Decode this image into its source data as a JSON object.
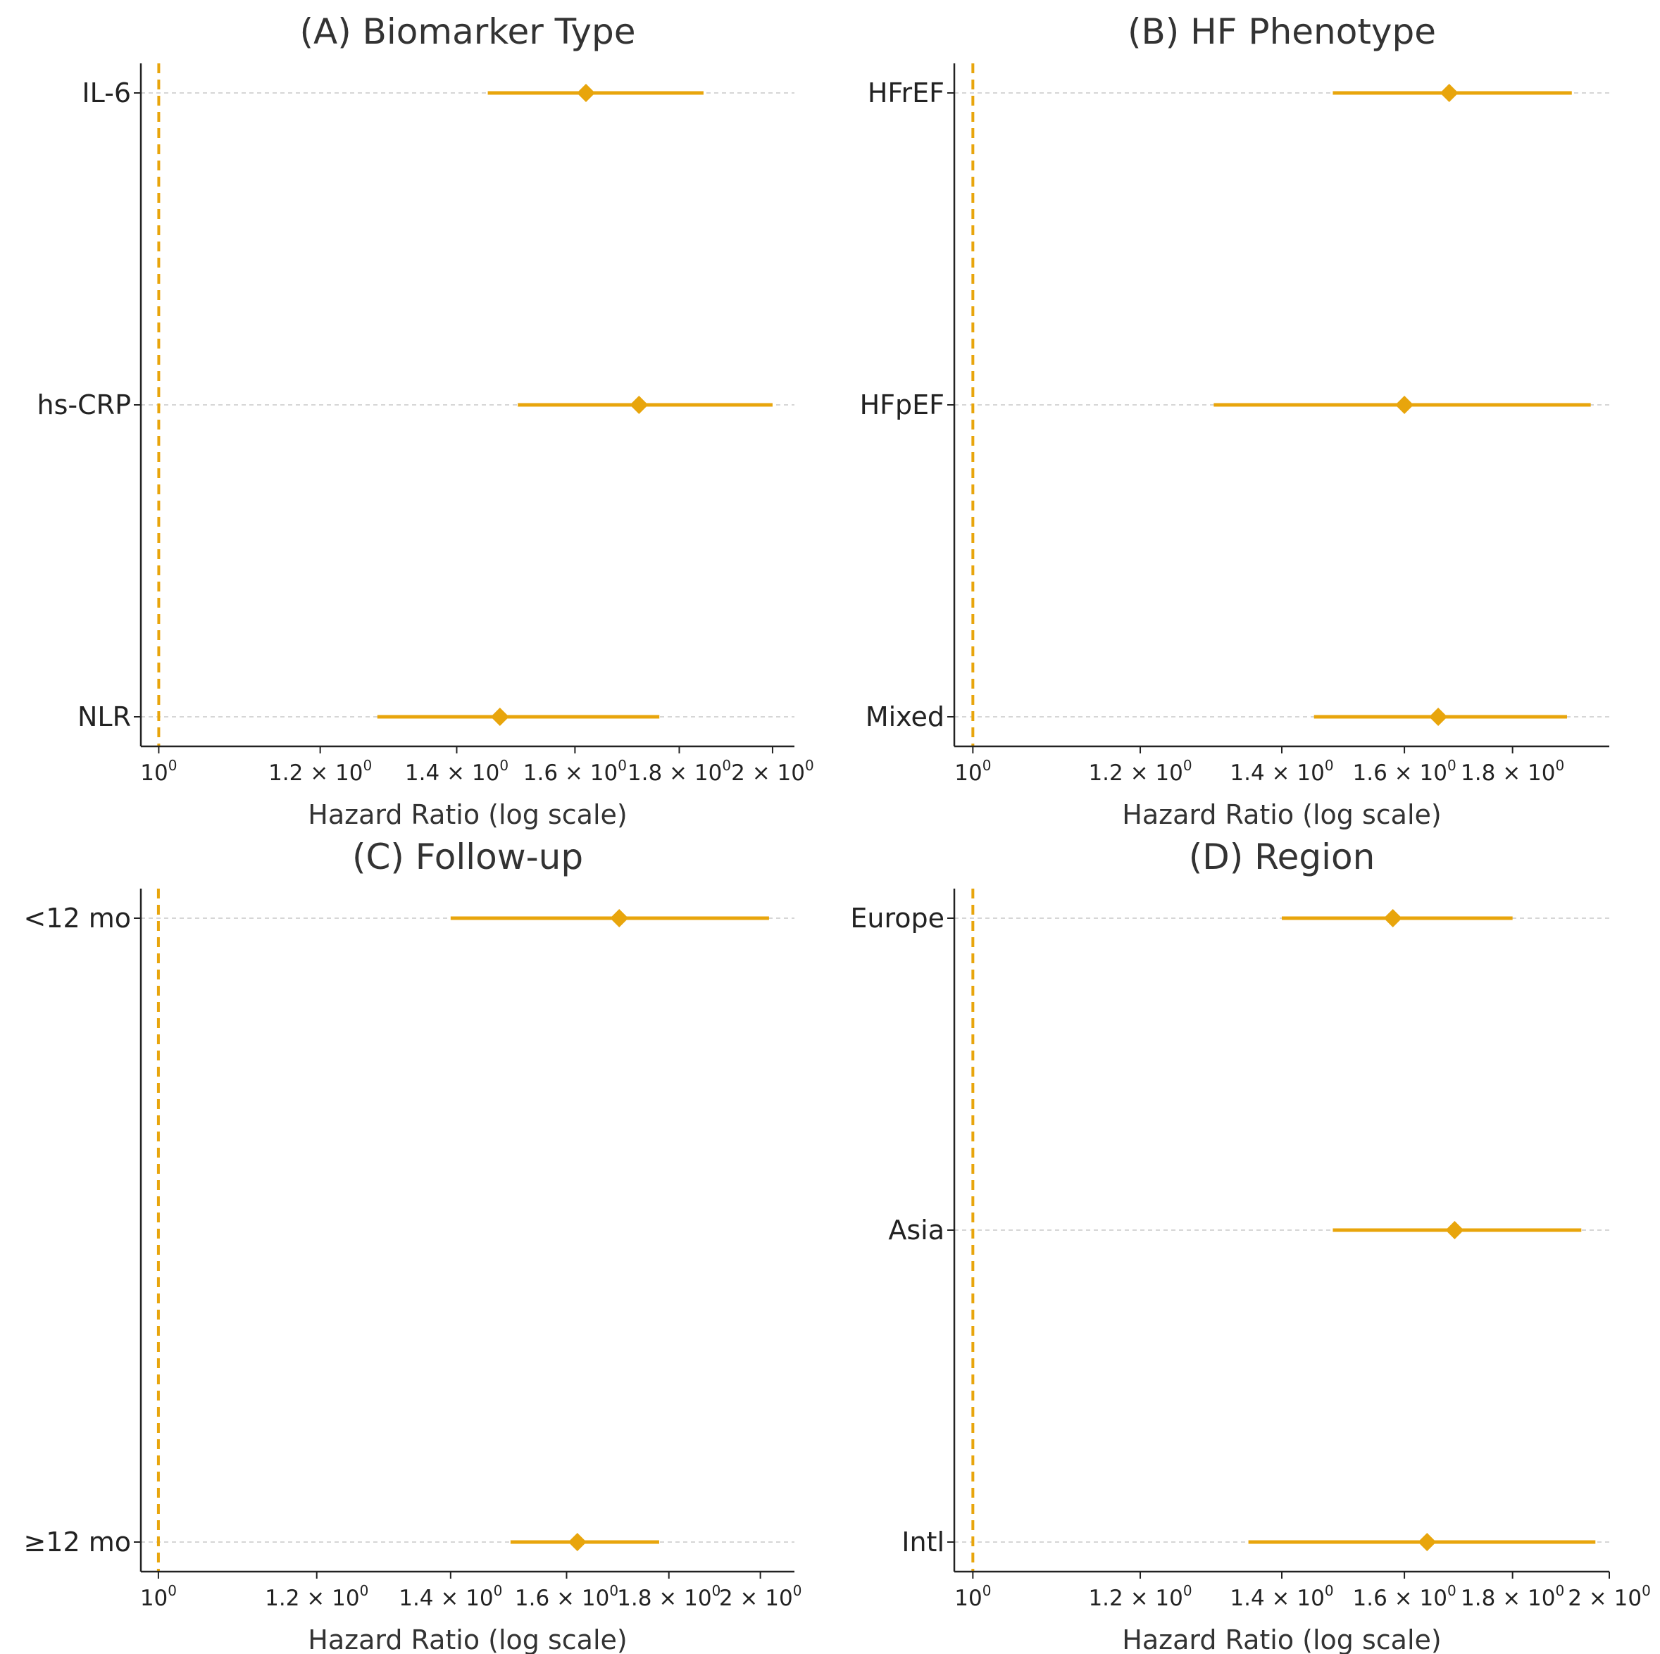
{
  "colors": {
    "marker": "#E8A50C",
    "reference_line": "#E8A50C",
    "gridline": "#c8c8c8",
    "axis": "#222222"
  },
  "chart_data": [
    {
      "type": "forest",
      "title": "(A) Biomarker Type",
      "xlabel": "Hazard Ratio (log scale)",
      "xscale": "log",
      "xlim": [
        0.98,
        2.05
      ],
      "xticks": [
        1.0,
        1.2,
        1.4,
        1.6,
        1.8,
        2.0
      ],
      "xtick_labels": [
        "10⁰",
        "1.2 × 10⁰",
        "1.4 × 10⁰",
        "1.6 × 10⁰",
        "1.8 × 10⁰",
        "2 × 10⁰"
      ],
      "reference_line": 1.0,
      "grid": "horizontal dashed",
      "categories": [
        "IL-6",
        "hs-CRP",
        "NLR"
      ],
      "estimates": [
        1.62,
        1.72,
        1.47
      ],
      "ci_lower": [
        1.45,
        1.5,
        1.28
      ],
      "ci_upper": [
        1.85,
        2.0,
        1.76
      ]
    },
    {
      "type": "forest",
      "title": "(B) HF Phenotype",
      "xlabel": "Hazard Ratio (log scale)",
      "xscale": "log",
      "xlim": [
        0.98,
        2.0
      ],
      "xticks": [
        1.0,
        1.2,
        1.4,
        1.6,
        1.8
      ],
      "xtick_labels": [
        "10⁰",
        "1.2 × 10⁰",
        "1.4 × 10⁰",
        "1.6 × 10⁰",
        "1.8 × 10⁰"
      ],
      "reference_line": 1.0,
      "grid": "horizontal dashed",
      "categories": [
        "HFrEF",
        "HFpEF",
        "Mixed"
      ],
      "estimates": [
        1.68,
        1.6,
        1.66
      ],
      "ci_lower": [
        1.48,
        1.3,
        1.45
      ],
      "ci_upper": [
        1.92,
        1.96,
        1.91
      ]
    },
    {
      "type": "forest",
      "title": "(C) Follow-up",
      "xlabel": "Hazard Ratio (log scale)",
      "xscale": "log",
      "xlim": [
        0.98,
        2.08
      ],
      "xticks": [
        1.0,
        1.2,
        1.4,
        1.6,
        1.8,
        2.0
      ],
      "xtick_labels": [
        "10⁰",
        "1.2 × 10⁰",
        "1.4 × 10⁰",
        "1.6 × 10⁰",
        "1.8 × 10⁰",
        "2 × 10⁰"
      ],
      "reference_line": 1.0,
      "grid": "horizontal dashed",
      "categories": [
        "<12 mo",
        "≥12 mo"
      ],
      "estimates": [
        1.7,
        1.62
      ],
      "ci_lower": [
        1.4,
        1.5
      ],
      "ci_upper": [
        2.02,
        1.78
      ]
    },
    {
      "type": "forest",
      "title": "(D) Region",
      "xlabel": "Hazard Ratio (log scale)",
      "xscale": "log",
      "xlim": [
        0.98,
        2.0
      ],
      "xticks": [
        1.0,
        1.2,
        1.4,
        1.6,
        1.8,
        2.0
      ],
      "xtick_labels": [
        "10⁰",
        "1.2 × 10⁰",
        "1.4 × 10⁰",
        "1.6 × 10⁰",
        "1.8 × 10⁰",
        "2 × 10⁰"
      ],
      "reference_line": 1.0,
      "grid": "horizontal dashed",
      "categories": [
        "Europe",
        "Asia",
        "Intl"
      ],
      "estimates": [
        1.58,
        1.69,
        1.64
      ],
      "ci_lower": [
        1.4,
        1.48,
        1.35
      ],
      "ci_upper": [
        1.8,
        1.94,
        1.97
      ]
    }
  ]
}
